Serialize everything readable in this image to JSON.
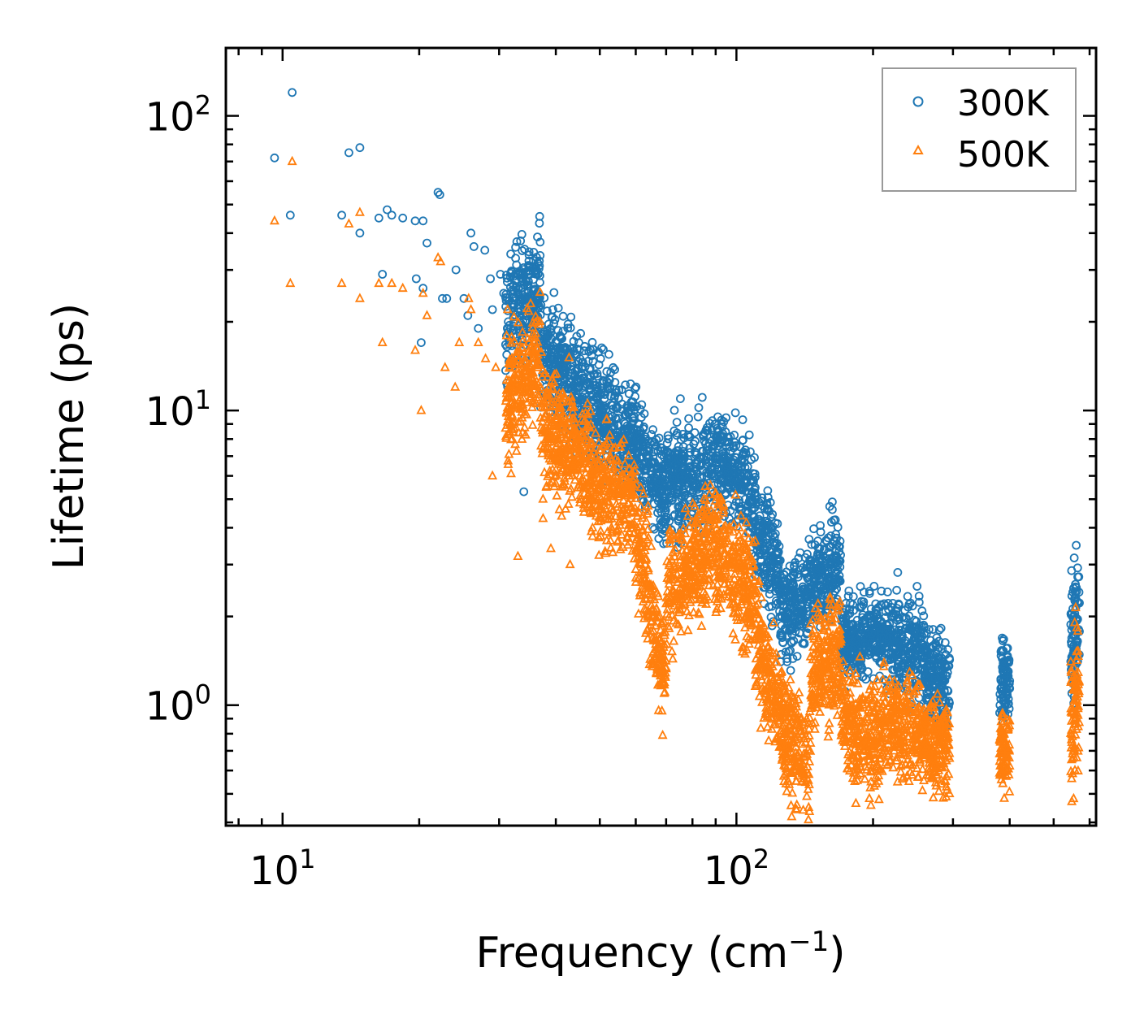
{
  "chart_data": {
    "type": "scatter",
    "title": "",
    "xlabel": "Frequency (cm",
    "xlabel_sup": "−1",
    "xlabel_close": ")",
    "ylabel": "Lifetime (ps)",
    "xscale": "log",
    "yscale": "log",
    "xlim": [
      7.5,
      620
    ],
    "ylim": [
      0.39,
      170
    ],
    "x_ticks": [
      {
        "base": "10",
        "exp": "1",
        "value": 10
      },
      {
        "base": "10",
        "exp": "2",
        "value": 100
      }
    ],
    "y_ticks": [
      {
        "base": "10",
        "exp": "0",
        "value": 1
      },
      {
        "base": "10",
        "exp": "1",
        "value": 10
      },
      {
        "base": "10",
        "exp": "2",
        "value": 100
      }
    ],
    "legend_position": "top-right",
    "series": [
      {
        "name": "300K",
        "marker": "circle",
        "color": "#1f77b4",
        "points": [
          [
            9.6,
            72
          ],
          [
            10.5,
            120
          ],
          [
            10.4,
            46
          ],
          [
            13.5,
            46
          ],
          [
            14.0,
            75
          ],
          [
            14.8,
            78
          ],
          [
            14.8,
            40
          ],
          [
            16.3,
            45
          ],
          [
            17.0,
            48
          ],
          [
            17.4,
            46
          ],
          [
            18.4,
            45
          ],
          [
            19.6,
            44
          ],
          [
            20.4,
            44
          ],
          [
            20.8,
            37
          ],
          [
            16.6,
            29
          ],
          [
            19.7,
            28
          ],
          [
            20.4,
            26
          ],
          [
            20.2,
            17
          ],
          [
            22.0,
            55
          ],
          [
            22.2,
            54
          ],
          [
            22.5,
            24
          ],
          [
            23.0,
            24
          ],
          [
            24.1,
            30
          ],
          [
            25.1,
            24
          ],
          [
            26.0,
            40
          ],
          [
            26.4,
            36
          ],
          [
            27.9,
            35
          ],
          [
            28.7,
            28
          ],
          [
            25.6,
            21
          ],
          [
            27.0,
            19
          ],
          [
            29.0,
            22
          ],
          [
            30.2,
            29
          ],
          [
            30.7,
            25
          ],
          [
            32.0,
            23
          ],
          [
            34.0,
            5.3
          ],
          [
            39.4,
            22
          ],
          [
            41.8,
            15
          ],
          [
            50.2,
            15
          ]
        ],
        "bands": [
          {
            "x": [
              31,
              37
            ],
            "y_mid": [
              20,
              27
            ],
            "spread": 0.1
          },
          {
            "x": [
              37,
              45
            ],
            "y_mid": [
              16,
              12
            ],
            "spread": 0.09
          },
          {
            "x": [
              45,
              60
            ],
            "y_mid": [
              11,
              8
            ],
            "spread": 0.09
          },
          {
            "x": [
              60,
              70
            ],
            "y_mid": [
              7.5,
              5.2
            ],
            "spread": 0.09
          },
          {
            "x": [
              70,
              90
            ],
            "y_mid": [
              5.8,
              6.4
            ],
            "spread": 0.09
          },
          {
            "x": [
              90,
              110
            ],
            "y_mid": [
              6.8,
              5.0
            ],
            "spread": 0.08
          },
          {
            "x": [
              110,
              125
            ],
            "y_mid": [
              4.0,
              2.8
            ],
            "spread": 0.09
          },
          {
            "x": [
              125,
              145
            ],
            "y_mid": [
              2.0,
              2.4
            ],
            "spread": 0.08
          },
          {
            "x": [
              145,
              170
            ],
            "y_mid": [
              2.6,
              3.0
            ],
            "spread": 0.08
          },
          {
            "x": [
              170,
              210
            ],
            "y_mid": [
              1.6,
              1.8
            ],
            "spread": 0.07
          },
          {
            "x": [
              210,
              260
            ],
            "y_mid": [
              1.7,
              1.5
            ],
            "spread": 0.08
          },
          {
            "x": [
              260,
              295
            ],
            "y_mid": [
              1.3,
              1.15
            ],
            "spread": 0.08
          },
          {
            "x": [
              380,
              400
            ],
            "y_mid": [
              1.2,
              1.2
            ],
            "spread": 0.06
          },
          {
            "x": [
              545,
              570
            ],
            "y_mid": [
              1.6,
              2.2
            ],
            "spread": 0.12
          }
        ]
      },
      {
        "name": "500K",
        "marker": "triangle",
        "color": "#ff7f0e",
        "points": [
          [
            9.6,
            44
          ],
          [
            10.4,
            27
          ],
          [
            10.5,
            70
          ],
          [
            13.5,
            27
          ],
          [
            14.0,
            43
          ],
          [
            14.8,
            47
          ],
          [
            14.8,
            24
          ],
          [
            16.3,
            27
          ],
          [
            16.6,
            17
          ],
          [
            17.4,
            27
          ],
          [
            18.4,
            26
          ],
          [
            19.6,
            16
          ],
          [
            20.2,
            10
          ],
          [
            20.8,
            21
          ],
          [
            20.4,
            25
          ],
          [
            22.0,
            33
          ],
          [
            22.3,
            32
          ],
          [
            22.8,
            14
          ],
          [
            24.0,
            12
          ],
          [
            24.5,
            17
          ],
          [
            25.7,
            24
          ],
          [
            26.0,
            22
          ],
          [
            27.0,
            17
          ],
          [
            28.0,
            15
          ],
          [
            29.0,
            6.0
          ],
          [
            29.5,
            14
          ],
          [
            33.0,
            3.2
          ],
          [
            37.5,
            4.3
          ],
          [
            39.0,
            3.4
          ],
          [
            43.0,
            3.0
          ]
        ],
        "bands": [
          {
            "x": [
              31,
              37
            ],
            "y_mid": [
              11,
              15
            ],
            "spread": 0.1
          },
          {
            "x": [
              37,
              45
            ],
            "y_mid": [
              9,
              7
            ],
            "spread": 0.1
          },
          {
            "x": [
              45,
              60
            ],
            "y_mid": [
              6.5,
              4.6
            ],
            "spread": 0.1
          },
          {
            "x": [
              60,
              70
            ],
            "y_mid": [
              4.0,
              1.2
            ],
            "spread": 0.1
          },
          {
            "x": [
              70,
              90
            ],
            "y_mid": [
              2.5,
              3.6
            ],
            "spread": 0.1
          },
          {
            "x": [
              90,
              110
            ],
            "y_mid": [
              3.5,
              2.2
            ],
            "spread": 0.1
          },
          {
            "x": [
              110,
              125
            ],
            "y_mid": [
              1.7,
              0.95
            ],
            "spread": 0.1
          },
          {
            "x": [
              125,
              145
            ],
            "y_mid": [
              0.85,
              0.6
            ],
            "spread": 0.1
          },
          {
            "x": [
              145,
              170
            ],
            "y_mid": [
              1.2,
              1.6
            ],
            "spread": 0.1
          },
          {
            "x": [
              170,
              210
            ],
            "y_mid": [
              0.9,
              0.75
            ],
            "spread": 0.09
          },
          {
            "x": [
              210,
              260
            ],
            "y_mid": [
              0.9,
              0.8
            ],
            "spread": 0.09
          },
          {
            "x": [
              260,
              295
            ],
            "y_mid": [
              0.8,
              0.7
            ],
            "spread": 0.08
          },
          {
            "x": [
              380,
              400
            ],
            "y_mid": [
              0.7,
              0.7
            ],
            "spread": 0.06
          },
          {
            "x": [
              545,
              570
            ],
            "y_mid": [
              0.8,
              1.2
            ],
            "spread": 0.14
          }
        ]
      }
    ],
    "legend": [
      {
        "label": "300K",
        "marker": "circle",
        "color": "#1f77b4"
      },
      {
        "label": "500K",
        "marker": "triangle",
        "color": "#ff7f0e"
      }
    ]
  }
}
